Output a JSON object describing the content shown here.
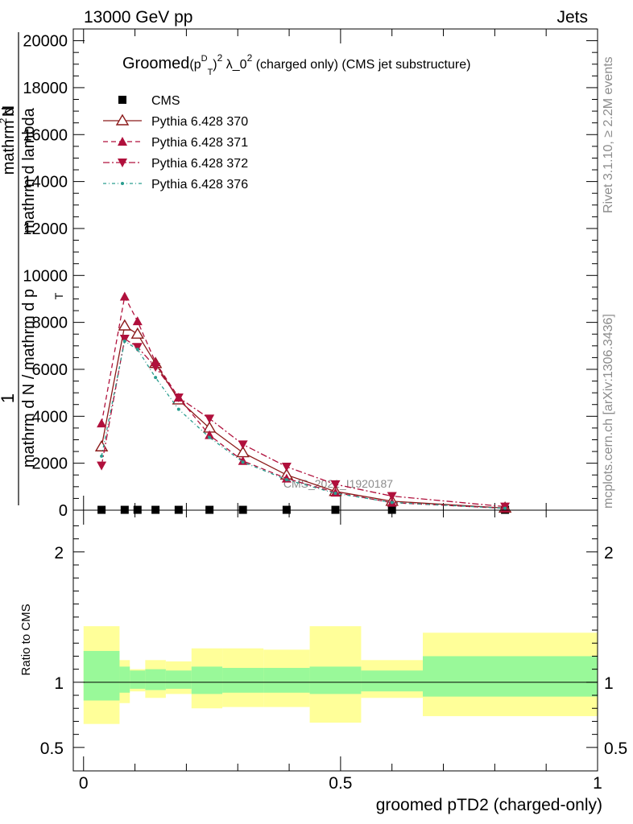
{
  "header": {
    "left": "13000 GeV pp",
    "right": "Jets"
  },
  "side_labels": {
    "rivet": "Rivet 3.1.10, ≥ 2.2M events",
    "mcplots": "mcplots.cern.ch [arXiv:1306.3436]"
  },
  "watermark": "CMS_2021_I1920187",
  "chart_data": [
    {
      "type": "line",
      "title_prefix": "Groomed",
      "title_math_base": "(p",
      "title_math_sub": "T",
      "title_math_sup": "D",
      "title_math_rest": ")",
      "title_math_sup2": "2",
      "title_lambda": "λ_0",
      "title_lambda_sup": "2",
      "title_suffix": "(charged only) (CMS jet substructure)",
      "ylabel_parts": [
        "1",
        "mathrm d N / mathrm d p",
        "T",
        "mathrm d lambda",
        "mathrm d",
        "2",
        "N"
      ],
      "ylim": [
        0,
        20500
      ],
      "xlim": [
        -0.02,
        1.0
      ],
      "yticks": [
        0,
        2000,
        4000,
        6000,
        8000,
        10000,
        12000,
        14000,
        16000,
        18000,
        20000
      ],
      "ytick_labels": [
        "0",
        "2000",
        "4000",
        "6000",
        "8000",
        "10000",
        "12000",
        "14000",
        "16000",
        "18000",
        "20000"
      ],
      "legend_position": "top-left",
      "series": [
        {
          "name": "CMS",
          "color": "#000000",
          "marker": "square",
          "x": [
            0.035,
            0.08,
            0.105,
            0.14,
            0.185,
            0.245,
            0.31,
            0.395,
            0.49,
            0.6,
            0.82
          ],
          "y": [
            15,
            15,
            15,
            15,
            15,
            15,
            15,
            15,
            15,
            15,
            15
          ]
        },
        {
          "name": "Pythia 6.428 370",
          "color": "#8b1a1a",
          "marker": "triangle-up-open",
          "dash": "",
          "x": [
            0.035,
            0.08,
            0.105,
            0.14,
            0.185,
            0.245,
            0.31,
            0.395,
            0.49,
            0.6,
            0.82
          ],
          "y": [
            2700,
            7850,
            7500,
            6250,
            4700,
            3500,
            2450,
            1500,
            800,
            380,
            90
          ]
        },
        {
          "name": "Pythia 6.428 371",
          "color": "#b0103c",
          "marker": "triangle-up-filled",
          "dash": "6,4",
          "x": [
            0.035,
            0.08,
            0.105,
            0.14,
            0.185,
            0.245,
            0.31,
            0.395,
            0.49,
            0.6,
            0.82
          ],
          "y": [
            3700,
            9100,
            8050,
            6300,
            4800,
            3200,
            2100,
            1350,
            750,
            320,
            80
          ]
        },
        {
          "name": "Pythia 6.428 372",
          "color": "#b0103c",
          "marker": "triangle-down-filled",
          "dash": "8,3,2,3",
          "x": [
            0.035,
            0.08,
            0.105,
            0.14,
            0.185,
            0.245,
            0.31,
            0.395,
            0.49,
            0.6,
            0.82
          ],
          "y": [
            1900,
            7300,
            6950,
            6100,
            4800,
            3900,
            2800,
            1850,
            1100,
            600,
            150
          ]
        },
        {
          "name": "Pythia 6.428 376",
          "color": "#2a9d8f",
          "marker": "dot",
          "dash": "4,3,1,3",
          "x": [
            0.035,
            0.08,
            0.105,
            0.14,
            0.185,
            0.245,
            0.31,
            0.395,
            0.49,
            0.6,
            0.82
          ],
          "y": [
            2300,
            7200,
            6850,
            5650,
            4300,
            3100,
            2050,
            1300,
            720,
            330,
            80
          ]
        }
      ]
    },
    {
      "type": "area",
      "ylabel": "Ratio to CMS",
      "xlabel": "groomed pTD2 (charged-only)",
      "ylim": [
        0.32,
        2.32
      ],
      "xlim": [
        -0.02,
        1.0
      ],
      "yticks": [
        0.5,
        1,
        2
      ],
      "ytick_labels": [
        "0.5",
        "1",
        "2"
      ],
      "xticks": [
        0,
        0.5,
        1
      ],
      "xtick_labels": [
        "0",
        "0.5",
        "1"
      ],
      "reference_line": 1,
      "bands": {
        "colors": {
          "inner": "#99f999",
          "outer": "#ffff99"
        },
        "bins": [
          {
            "x0": 0.0,
            "x1": 0.07,
            "inner": [
              0.86,
              1.24
            ],
            "outer": [
              0.68,
              1.43
            ]
          },
          {
            "x0": 0.07,
            "x1": 0.09,
            "inner": [
              0.92,
              1.12
            ],
            "outer": [
              0.84,
              1.17
            ]
          },
          {
            "x0": 0.09,
            "x1": 0.12,
            "inner": [
              0.95,
              1.09
            ],
            "outer": [
              0.93,
              1.1
            ]
          },
          {
            "x0": 0.12,
            "x1": 0.16,
            "inner": [
              0.94,
              1.1
            ],
            "outer": [
              0.88,
              1.17
            ]
          },
          {
            "x0": 0.16,
            "x1": 0.21,
            "inner": [
              0.95,
              1.09
            ],
            "outer": [
              0.91,
              1.16
            ]
          },
          {
            "x0": 0.21,
            "x1": 0.27,
            "inner": [
              0.91,
              1.12
            ],
            "outer": [
              0.8,
              1.26
            ]
          },
          {
            "x0": 0.27,
            "x1": 0.35,
            "inner": [
              0.92,
              1.11
            ],
            "outer": [
              0.81,
              1.26
            ]
          },
          {
            "x0": 0.35,
            "x1": 0.44,
            "inner": [
              0.92,
              1.11
            ],
            "outer": [
              0.81,
              1.25
            ]
          },
          {
            "x0": 0.44,
            "x1": 0.54,
            "inner": [
              0.91,
              1.12
            ],
            "outer": [
              0.69,
              1.43
            ]
          },
          {
            "x0": 0.54,
            "x1": 0.66,
            "inner": [
              0.93,
              1.09
            ],
            "outer": [
              0.88,
              1.17
            ]
          },
          {
            "x0": 0.66,
            "x1": 1.0,
            "inner": [
              0.89,
              1.2
            ],
            "outer": [
              0.74,
              1.38
            ]
          }
        ]
      }
    }
  ]
}
